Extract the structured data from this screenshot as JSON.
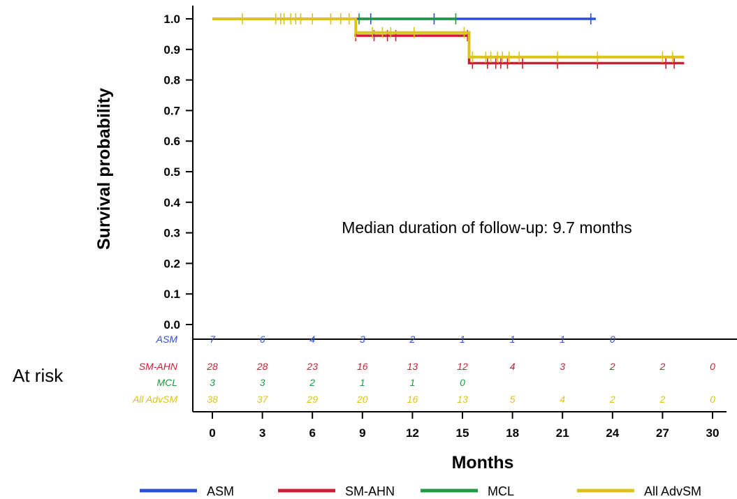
{
  "chart_data": {
    "type": "line",
    "title": "",
    "xlabel": "Months",
    "ylabel": "Survival probability",
    "xlim": [
      0,
      30
    ],
    "ylim": [
      0,
      1.0
    ],
    "x_ticks": [
      "0",
      "3",
      "6",
      "9",
      "12",
      "15",
      "18",
      "21",
      "24",
      "27",
      "30"
    ],
    "y_ticks": [
      "0.0",
      "0.1",
      "0.2",
      "0.3",
      "0.4",
      "0.5",
      "0.6",
      "0.7",
      "0.8",
      "0.9",
      "1.0"
    ],
    "annotation": "Median duration of follow-up: 9.7 months",
    "legend_position": "bottom",
    "at_risk_label": "At risk",
    "grid": false,
    "series": [
      {
        "name": "ASM",
        "color": "#2d4fd6",
        "steps": [
          [
            0,
            1.0
          ],
          [
            23,
            1.0
          ]
        ],
        "censors": [
          [
            9.5,
            1.0
          ],
          [
            13.3,
            1.0
          ],
          [
            22.7,
            1.0
          ]
        ],
        "at_risk": [
          "7",
          "6",
          "4",
          "3",
          "2",
          "1",
          "1",
          "1",
          "0",
          "",
          ""
        ]
      },
      {
        "name": "SM-AHN",
        "color": "#cc1f36",
        "steps": [
          [
            0,
            1.0
          ],
          [
            8.6,
            1.0
          ],
          [
            8.6,
            0.945
          ],
          [
            15.4,
            0.945
          ],
          [
            15.4,
            0.855
          ],
          [
            28.3,
            0.855
          ]
        ],
        "censors": [
          [
            8.6,
            0.945
          ],
          [
            9.7,
            0.945
          ],
          [
            10.5,
            0.945
          ],
          [
            11.0,
            0.945
          ],
          [
            15.3,
            0.945
          ],
          [
            15.6,
            0.855
          ],
          [
            16.5,
            0.855
          ],
          [
            17.0,
            0.855
          ],
          [
            17.3,
            0.855
          ],
          [
            17.7,
            0.855
          ],
          [
            18.6,
            0.855
          ],
          [
            20.7,
            0.855
          ],
          [
            23.1,
            0.855
          ],
          [
            27.2,
            0.855
          ],
          [
            27.7,
            0.855
          ]
        ],
        "at_risk": [
          "28",
          "28",
          "23",
          "16",
          "13",
          "12",
          "4",
          "3",
          "2",
          "2",
          "0"
        ]
      },
      {
        "name": "MCL",
        "color": "#1e9a40",
        "steps": [
          [
            8.8,
            1.0
          ],
          [
            14.6,
            1.0
          ]
        ],
        "censors": [
          [
            8.8,
            1.0
          ],
          [
            14.6,
            1.0
          ]
        ],
        "at_risk": [
          "3",
          "3",
          "2",
          "1",
          "1",
          "0",
          "",
          "",
          "",
          "",
          ""
        ]
      },
      {
        "name": "All AdvSM",
        "color": "#dcc21c",
        "steps": [
          [
            0,
            1.0
          ],
          [
            8.6,
            1.0
          ],
          [
            8.6,
            0.955
          ],
          [
            15.4,
            0.955
          ],
          [
            15.4,
            0.875
          ],
          [
            28.3,
            0.875
          ]
        ],
        "censors": [
          [
            1.8,
            1.0
          ],
          [
            3.8,
            1.0
          ],
          [
            4.1,
            1.0
          ],
          [
            4.3,
            1.0
          ],
          [
            4.7,
            1.0
          ],
          [
            5.0,
            1.0
          ],
          [
            5.3,
            1.0
          ],
          [
            6.0,
            1.0
          ],
          [
            7.1,
            1.0
          ],
          [
            7.7,
            1.0
          ],
          [
            8.2,
            1.0
          ],
          [
            8.6,
            0.955
          ],
          [
            9.6,
            0.955
          ],
          [
            10.2,
            0.955
          ],
          [
            10.7,
            0.955
          ],
          [
            12.1,
            0.955
          ],
          [
            15.1,
            0.955
          ],
          [
            15.6,
            0.875
          ],
          [
            16.4,
            0.875
          ],
          [
            16.7,
            0.875
          ],
          [
            17.1,
            0.875
          ],
          [
            17.4,
            0.875
          ],
          [
            17.8,
            0.875
          ],
          [
            18.4,
            0.875
          ],
          [
            20.7,
            0.875
          ],
          [
            23.1,
            0.875
          ],
          [
            27.0,
            0.875
          ],
          [
            27.6,
            0.875
          ]
        ],
        "at_risk": [
          "38",
          "37",
          "29",
          "20",
          "16",
          "13",
          "5",
          "4",
          "2",
          "2",
          "0"
        ]
      }
    ]
  }
}
